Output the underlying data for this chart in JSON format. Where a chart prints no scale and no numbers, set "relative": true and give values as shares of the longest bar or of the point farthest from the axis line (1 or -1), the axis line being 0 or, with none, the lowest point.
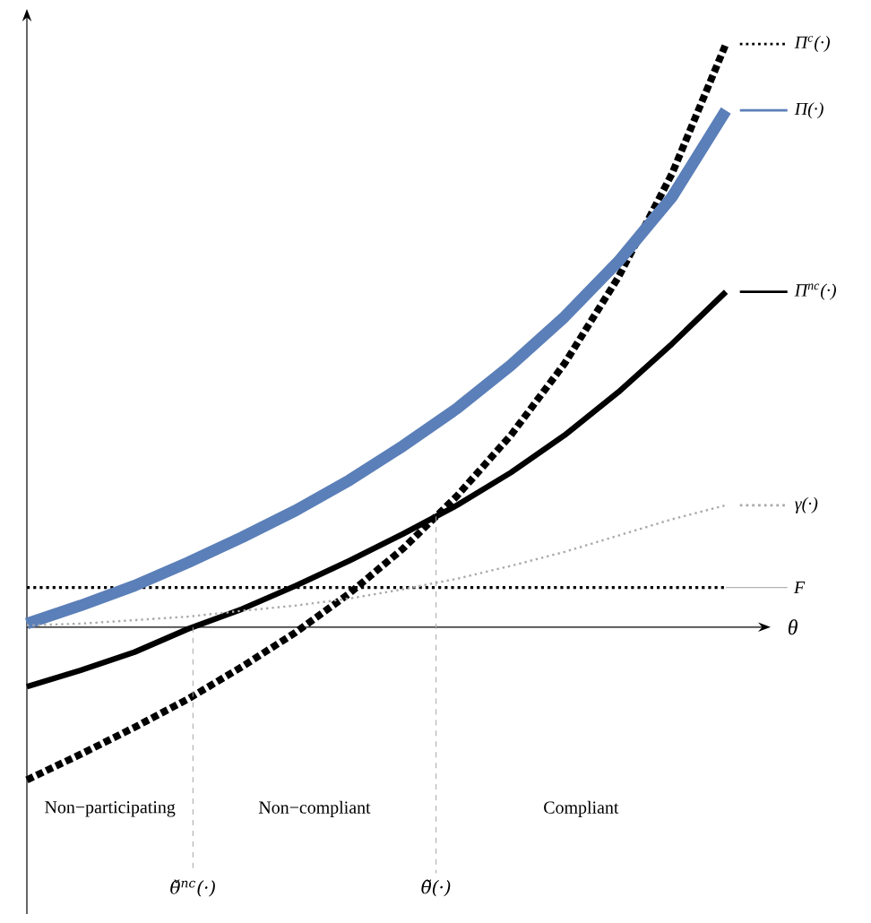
{
  "chart_data": {
    "type": "line",
    "relative": true,
    "xlabel": "θ",
    "legend": "right",
    "categories": [
      null,
      null,
      null,
      null,
      null,
      null,
      null,
      null,
      null,
      null,
      null,
      null,
      null,
      null
    ],
    "series": [
      {
        "name": "Π$^{c}$(·)",
        "color": "#000000",
        "line_style": "dotted",
        "values": [
          -0.262,
          -0.218,
          -0.172,
          -0.123,
          -0.068,
          -0.009,
          0.058,
          0.135,
          0.225,
          0.329,
          0.452,
          0.6,
          0.778,
          1.0
        ]
      },
      {
        "name": "Π(·)",
        "color": "#5b7fb8",
        "line_style": "solid",
        "values": [
          0.006,
          0.037,
          0.071,
          0.111,
          0.154,
          0.2,
          0.252,
          0.311,
          0.375,
          0.449,
          0.532,
          0.627,
          0.738,
          0.886
        ]
      },
      {
        "name": "Π$^{nc}$(·)",
        "color": "#000000",
        "line_style": "solid",
        "values": [
          -0.102,
          -0.074,
          -0.043,
          -0.003,
          0.031,
          0.071,
          0.114,
          0.16,
          0.209,
          0.265,
          0.329,
          0.403,
          0.486,
          0.575
        ]
      },
      {
        "name": "γ(·)",
        "color": "#aaaaaa",
        "line_style": "dotted",
        "values": [
          0.003,
          0.006,
          0.012,
          0.018,
          0.028,
          0.037,
          0.049,
          0.065,
          0.083,
          0.105,
          0.129,
          0.157,
          0.185,
          0.209
        ]
      }
    ],
    "ref_lines": [
      {
        "axis": "y",
        "value": 0.068,
        "label": "F",
        "color": "#000000",
        "line_style": "dotted"
      }
    ],
    "annotations": [
      "θ̌$^{nc}$(·)",
      "θ̃(·)",
      "Non−participating",
      "Non−compliant",
      "Compliant"
    ]
  }
}
